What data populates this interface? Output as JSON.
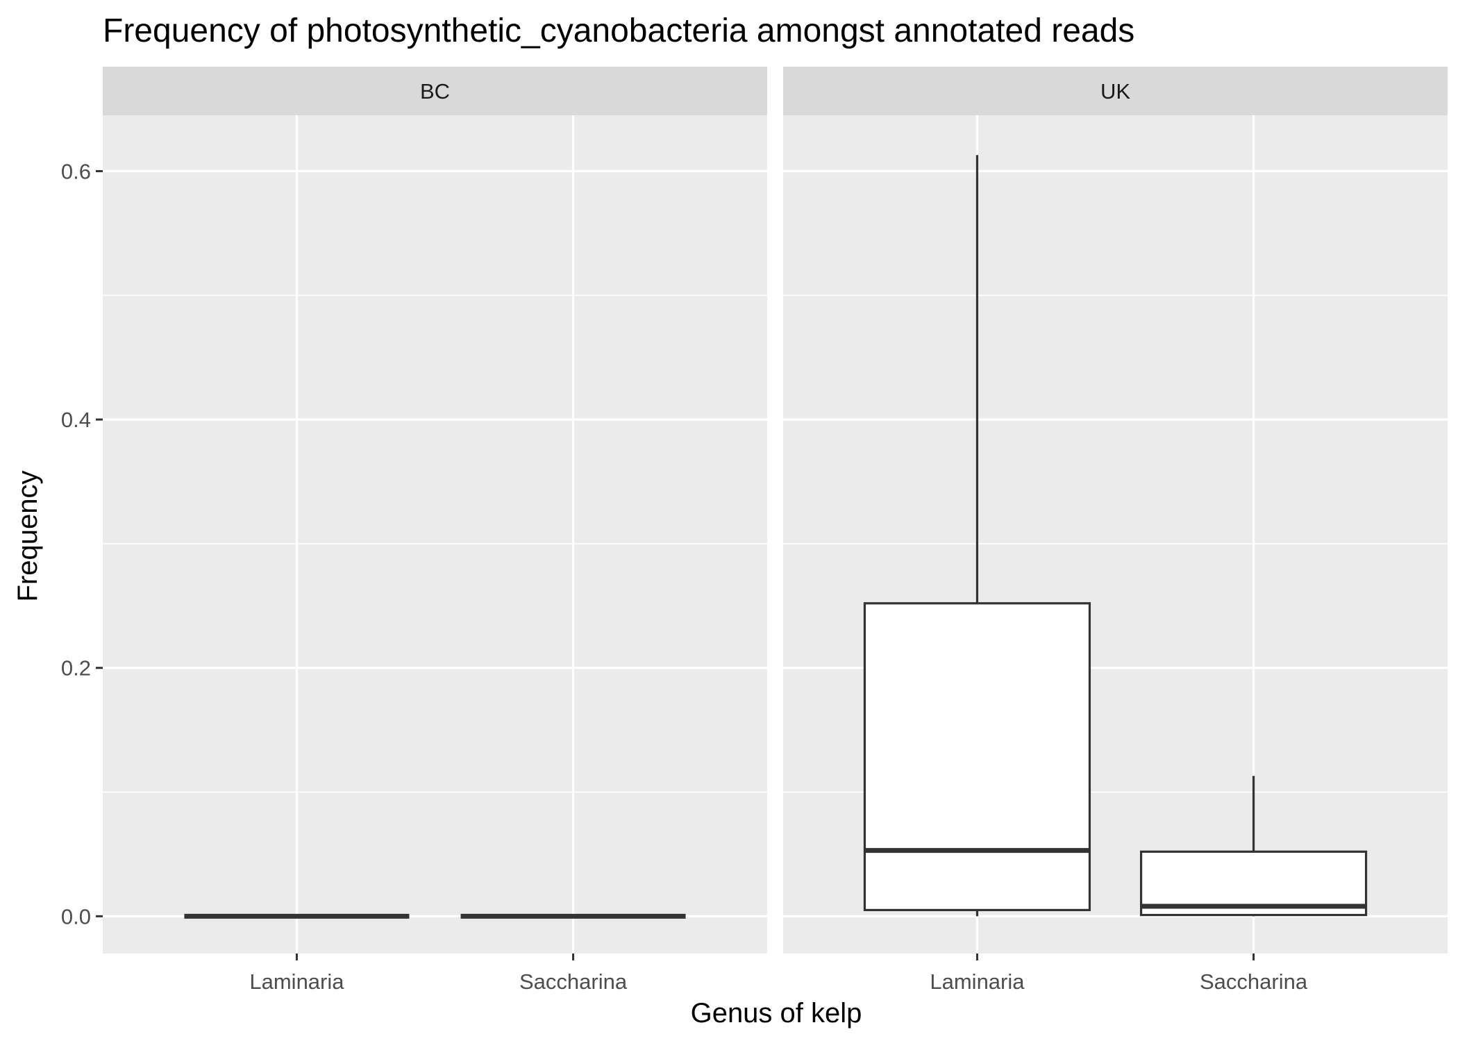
{
  "chart_data": {
    "type": "boxplot",
    "title": "Frequency of photosynthetic_cyanobacteria amongst annotated reads",
    "xlabel": "Genus of kelp",
    "ylabel": "Frequency",
    "categories": [
      "Laminaria",
      "Saccharina"
    ],
    "ylim": [
      -0.03,
      0.645
    ],
    "yticks": [
      0.0,
      0.2,
      0.4,
      0.6
    ],
    "ytick_labels": [
      "0.0",
      "0.2",
      "0.4",
      "0.6"
    ],
    "grid": true,
    "panels": [
      {
        "facet": "BC",
        "boxes": [
          {
            "category": "Laminaria",
            "min": 0.0,
            "q1": 0.0,
            "median": 0.0,
            "q3": 0.0,
            "max": 0.0
          },
          {
            "category": "Saccharina",
            "min": 0.0,
            "q1": 0.0,
            "median": 0.0,
            "q3": 0.0,
            "max": 0.0
          }
        ]
      },
      {
        "facet": "UK",
        "boxes": [
          {
            "category": "Laminaria",
            "min": 0.0,
            "q1": 0.005,
            "median": 0.053,
            "q3": 0.252,
            "max": 0.613
          },
          {
            "category": "Saccharina",
            "min": 0.0,
            "q1": 0.001,
            "median": 0.008,
            "q3": 0.052,
            "max": 0.113
          }
        ]
      }
    ],
    "colors": {
      "panel_background": "#ebebeb",
      "strip_background": "#d9d9d9",
      "grid": "#ffffff",
      "box_fill": "#ffffff",
      "box_line": "#333333",
      "tick_text": "#4d4d4d"
    }
  }
}
